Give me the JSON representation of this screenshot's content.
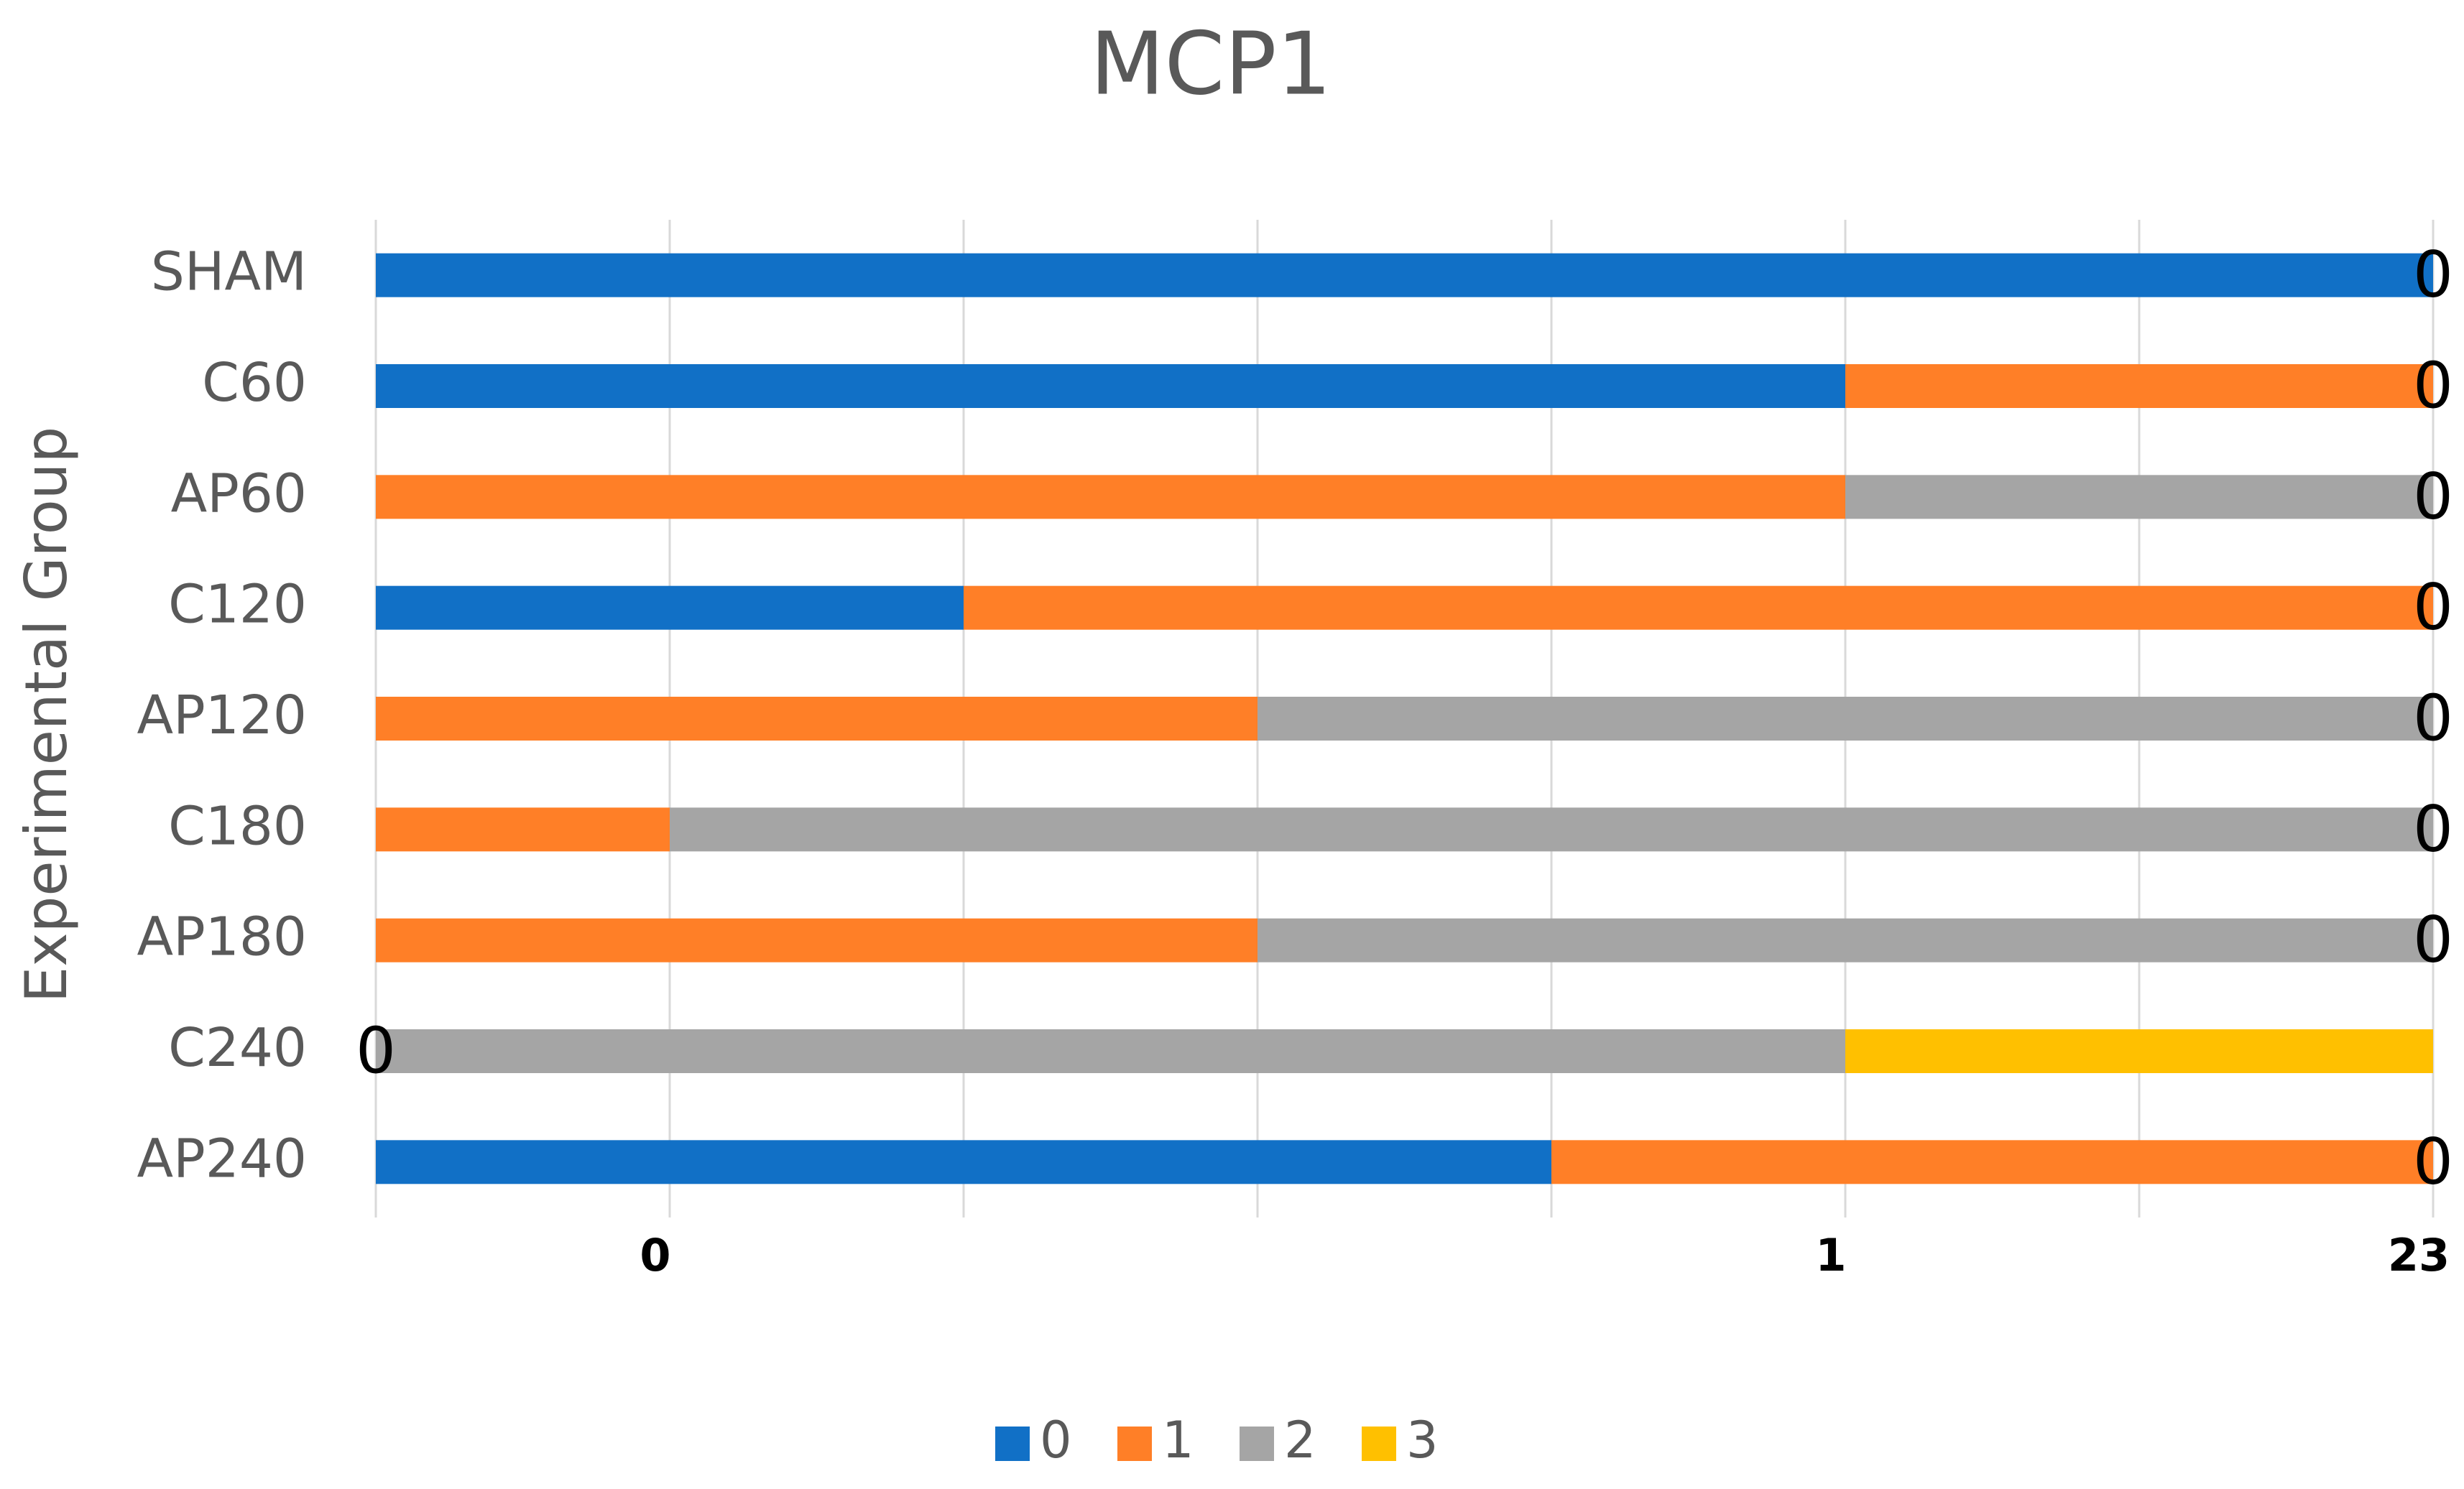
{
  "chart_data": {
    "type": "bar",
    "orientation": "horizontal",
    "stacked": true,
    "title": "MCP1",
    "y_label": "Experimental Group",
    "categories": [
      "SHAM",
      "C60",
      "AP60",
      "C120",
      "AP120",
      "C180",
      "AP180",
      "C240",
      "AP240"
    ],
    "series": [
      {
        "name": "0",
        "color": "#1170c6",
        "values": [
          7,
          5,
          0,
          2,
          0,
          0,
          0,
          0,
          4
        ]
      },
      {
        "name": "1",
        "color": "#ff7f27",
        "values": [
          0,
          2,
          5,
          5,
          3,
          1,
          3,
          0,
          3
        ]
      },
      {
        "name": "2",
        "color": "#a5a5a5",
        "values": [
          0,
          0,
          2,
          0,
          4,
          6,
          4,
          5,
          0
        ]
      },
      {
        "name": "3",
        "color": "#ffc000",
        "values": [
          0,
          0,
          0,
          0,
          0,
          0,
          0,
          2,
          0
        ]
      }
    ],
    "xlim": [
      0,
      7
    ],
    "xticks": [
      {
        "value": 1,
        "label": "0"
      },
      {
        "value": 5,
        "label": "1"
      },
      {
        "value": 7,
        "label": "23"
      }
    ],
    "xgrid": [
      0,
      1,
      2,
      3,
      4,
      5,
      6,
      7
    ],
    "annotations": [
      {
        "text": "0",
        "x": 7
      },
      {
        "text": "0",
        "x": 7
      },
      {
        "text": "0",
        "x": 7
      },
      {
        "text": "0",
        "x": 7
      },
      {
        "text": "0",
        "x": 7
      },
      {
        "text": "0",
        "x": 7
      },
      {
        "text": "0",
        "x": 7
      },
      {
        "text": "0",
        "x": 0
      },
      {
        "text": "0",
        "x": 7
      }
    ],
    "legend": "bottom"
  }
}
